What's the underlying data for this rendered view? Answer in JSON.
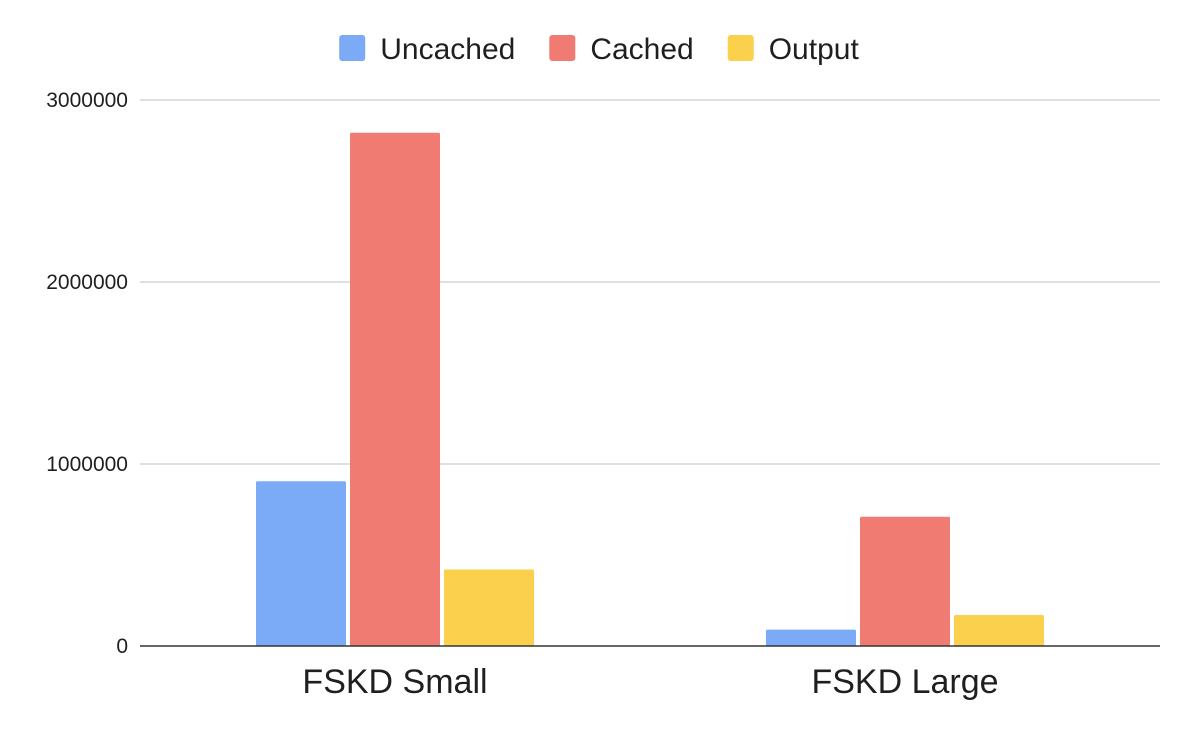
{
  "chart_data": {
    "type": "bar",
    "categories": [
      "FSKD Small",
      "FSKD Large"
    ],
    "series": [
      {
        "name": "Uncached",
        "color": "#7baaf7",
        "values": [
          905000,
          90000
        ]
      },
      {
        "name": "Cached",
        "color": "#f07b72",
        "values": [
          2820000,
          710000
        ]
      },
      {
        "name": "Output",
        "color": "#fbd04d",
        "values": [
          420000,
          170000
        ]
      }
    ],
    "ylim": [
      0,
      3000000
    ],
    "yticks": [
      0,
      1000000,
      2000000,
      3000000
    ],
    "ytick_labels": [
      "0",
      "1000000",
      "2000000",
      "3000000"
    ],
    "grid": true,
    "legend_position": "top-center",
    "xlabel": "",
    "ylabel": "",
    "title": ""
  }
}
